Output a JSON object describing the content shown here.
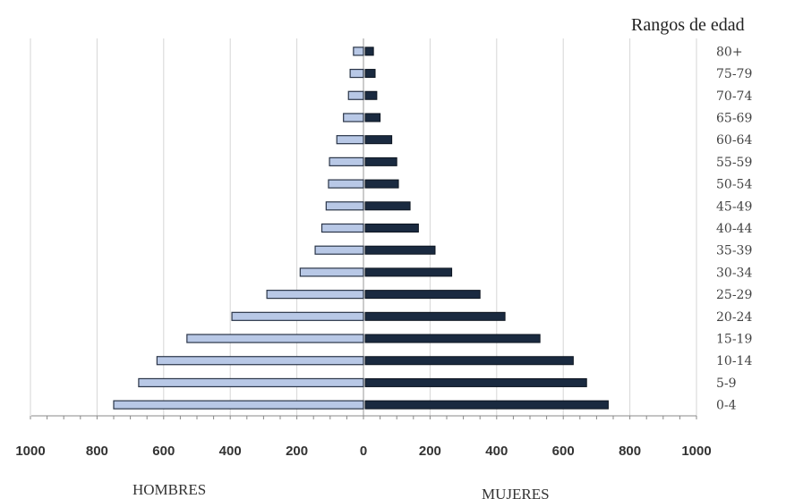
{
  "chart_data": {
    "type": "bar",
    "orientation": "horizontal",
    "title": "Rangos de edad",
    "categories": [
      "0-4",
      "5-9",
      "10-14",
      "15-19",
      "20-24",
      "25-29",
      "30-34",
      "35-39",
      "40-44",
      "45-49",
      "50-54",
      "55-59",
      "60-64",
      "65-69",
      "70-74",
      "75-79",
      "80+"
    ],
    "series": [
      {
        "name": "HOMBRES",
        "color": "#b8c8e6",
        "values": [
          750,
          675,
          620,
          530,
          395,
          290,
          190,
          145,
          125,
          112,
          105,
          102,
          80,
          60,
          45,
          40,
          30
        ]
      },
      {
        "name": "MUJERES",
        "color": "#1a2a40",
        "values": [
          735,
          670,
          630,
          530,
          425,
          350,
          265,
          215,
          165,
          140,
          105,
          100,
          85,
          50,
          40,
          35,
          30
        ]
      }
    ],
    "xticks": [
      "1000",
      "800",
      "600",
      "400",
      "200",
      "0",
      "200",
      "400",
      "600",
      "800",
      "1000"
    ],
    "xlim": [
      -1000,
      1000
    ],
    "grid": true
  }
}
